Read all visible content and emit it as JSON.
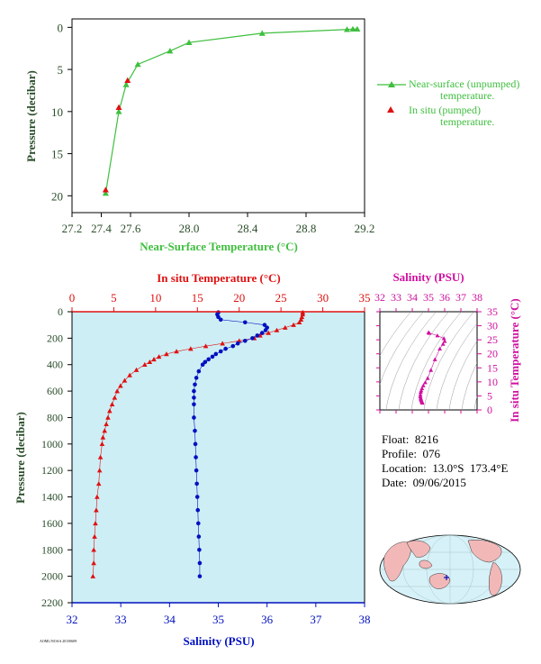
{
  "colors": {
    "green": "#3fbf3f",
    "red": "#e01010",
    "blue": "#0010c0",
    "magenta": "#d010a0",
    "axis_text": "#2a4d2a",
    "panel_bg": "#cdeef5",
    "land": "#f2b8b8",
    "ocean": "#d7f1f8"
  },
  "legend": {
    "near_surface": "Near-surface (unpumped)",
    "near_surface_2": "temperature.",
    "in_situ": "In situ (pumped)",
    "in_situ_2": "temperature."
  },
  "info": {
    "float": "Float:  8216",
    "profile": "Profile:  076",
    "location": "Location:  13.0°S  173.4°E",
    "date": "Date:  09/06/2015"
  },
  "tiny_text": "AOML/NOAA 20150609",
  "chart_data": [
    {
      "type": "line",
      "xlabel": "Near-Surface Temperature (°C)",
      "ylabel": "Pressure (decibar)",
      "xlim": [
        27.2,
        29.2
      ],
      "ylim": [
        22,
        -1
      ],
      "x_ticks": [
        "27.2",
        "27.4",
        "27.6",
        "28.0",
        "28.4",
        "28.8",
        "29.2"
      ],
      "x_tick_values": [
        27.2,
        27.4,
        27.6,
        28.0,
        28.4,
        28.8,
        29.2
      ],
      "y_ticks": [
        "0",
        "5",
        "10",
        "15",
        "20"
      ],
      "y_tick_values": [
        0,
        5,
        10,
        15,
        20
      ],
      "series": [
        {
          "name": "Near-surface (unpumped) temperature.",
          "marker": "triangle",
          "color": "green",
          "x": [
            27.43,
            27.52,
            27.57,
            27.65,
            27.87,
            28.0,
            28.5,
            29.08,
            29.12,
            29.15
          ],
          "y": [
            19.7,
            10.0,
            6.8,
            4.4,
            2.8,
            1.8,
            0.7,
            0.25,
            0.2,
            0.2
          ]
        },
        {
          "name": "In situ (pumped) temperature.",
          "marker": "triangle",
          "color": "red",
          "x": [
            27.43,
            27.52,
            27.58
          ],
          "y": [
            19.3,
            9.5,
            6.3
          ]
        }
      ]
    },
    {
      "type": "line",
      "xlabel": "Salinity (PSU)",
      "x2label": "In situ Temperature (°C)",
      "ylabel": "Pressure (decibar)",
      "salinity_lim": [
        32,
        38
      ],
      "temperature_lim": [
        0,
        35
      ],
      "ylim": [
        2200,
        0
      ],
      "salinity_ticks": [
        "32",
        "33",
        "34",
        "35",
        "36",
        "37",
        "38"
      ],
      "salinity_tick_values": [
        32,
        33,
        34,
        35,
        36,
        37,
        38
      ],
      "temperature_ticks": [
        "0",
        "5",
        "10",
        "15",
        "20",
        "25",
        "30",
        "35"
      ],
      "temperature_tick_values": [
        0,
        5,
        10,
        15,
        20,
        25,
        30,
        35
      ],
      "y_ticks": [
        "0",
        "200",
        "400",
        "600",
        "800",
        "1000",
        "1200",
        "1400",
        "1600",
        "1800",
        "2000",
        "2200"
      ],
      "y_tick_values": [
        0,
        200,
        400,
        600,
        800,
        1000,
        1200,
        1400,
        1600,
        1800,
        2000,
        2200
      ],
      "temperature": {
        "color": "red",
        "pressure": [
          5,
          20,
          40,
          60,
          80,
          100,
          120,
          140,
          160,
          180,
          200,
          220,
          240,
          260,
          280,
          300,
          320,
          340,
          360,
          380,
          400,
          440,
          480,
          520,
          560,
          600,
          650,
          700,
          750,
          800,
          850,
          900,
          950,
          1000,
          1100,
          1200,
          1300,
          1400,
          1500,
          1600,
          1700,
          1800,
          1900,
          2000
        ],
        "values": [
          27.6,
          27.6,
          27.5,
          27.4,
          27.2,
          26.5,
          25.5,
          24.5,
          23.5,
          22.5,
          21.8,
          20.0,
          18.0,
          16.0,
          14.2,
          12.5,
          11.3,
          10.4,
          9.8,
          9.3,
          8.7,
          7.7,
          6.9,
          6.3,
          5.8,
          5.4,
          5.1,
          4.8,
          4.5,
          4.3,
          4.1,
          3.9,
          3.7,
          3.6,
          3.4,
          3.3,
          3.2,
          3.0,
          2.9,
          2.8,
          2.7,
          2.6,
          2.6,
          2.5
        ]
      },
      "salinity": {
        "color": "blue",
        "pressure": [
          5,
          20,
          40,
          60,
          80,
          100,
          120,
          140,
          160,
          180,
          200,
          220,
          240,
          260,
          280,
          300,
          320,
          340,
          360,
          380,
          400,
          450,
          500,
          550,
          600,
          650,
          700,
          800,
          900,
          1000,
          1100,
          1200,
          1300,
          1400,
          1500,
          1600,
          1700,
          1800,
          1900,
          2000
        ],
        "values": [
          35.0,
          34.98,
          35.0,
          35.05,
          35.55,
          35.95,
          36.0,
          35.97,
          35.9,
          35.8,
          35.7,
          35.55,
          35.4,
          35.3,
          35.15,
          35.05,
          34.95,
          34.88,
          34.8,
          34.73,
          34.68,
          34.6,
          34.55,
          34.52,
          34.5,
          34.5,
          34.5,
          34.5,
          34.52,
          34.53,
          34.54,
          34.55,
          34.56,
          34.57,
          34.58,
          34.59,
          34.6,
          34.61,
          34.62,
          34.62
        ]
      }
    },
    {
      "type": "scatter",
      "title": "Salinity (PSU)",
      "xlabel": "Salinity (PSU)",
      "ylabel": "In situ Temperature (°C)",
      "xlim": [
        32,
        38
      ],
      "ylim": [
        0,
        35
      ],
      "x_ticks": [
        "32",
        "33",
        "34",
        "35",
        "36",
        "37",
        "38"
      ],
      "x_tick_values": [
        32,
        33,
        34,
        35,
        36,
        37,
        38
      ],
      "y_ticks": [
        "0",
        "5",
        "10",
        "15",
        "20",
        "25",
        "30",
        "35"
      ],
      "y_tick_values": [
        0,
        5,
        10,
        15,
        20,
        25,
        30,
        35
      ],
      "color": "magenta",
      "x": [
        35.0,
        35.05,
        35.55,
        35.95,
        36.0,
        35.9,
        35.7,
        35.4,
        35.15,
        34.95,
        34.8,
        34.68,
        34.6,
        34.55,
        34.52,
        34.5,
        34.5,
        34.52,
        34.53,
        34.55,
        34.57,
        34.59,
        34.61,
        34.62
      ],
      "y": [
        27.6,
        27.4,
        26.5,
        25.5,
        24.5,
        23.5,
        21.8,
        18.0,
        14.2,
        11.3,
        9.8,
        8.7,
        7.7,
        6.9,
        6.3,
        5.4,
        4.8,
        4.3,
        3.9,
        3.6,
        3.3,
        3.0,
        2.8,
        2.5
      ]
    }
  ]
}
